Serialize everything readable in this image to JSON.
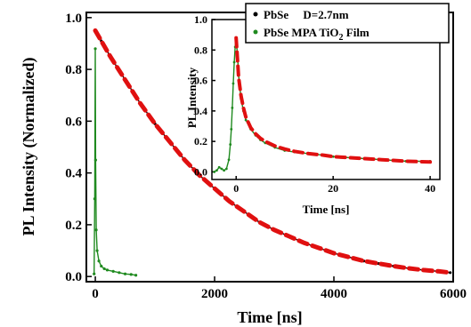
{
  "colors": {
    "black_series": "#000000",
    "green_series": "#1f8a1f",
    "fit": "#e01010"
  },
  "chart_data": [
    {
      "id": "main",
      "type": "scatter",
      "xlabel": "Time [ns]",
      "ylabel": "PL Intensity (Normalized)",
      "xlim": [
        -150,
        6000
      ],
      "ylim": [
        -0.02,
        1.02
      ],
      "xticks": [
        0,
        2000,
        4000,
        6000
      ],
      "xtick_labels": [
        "0",
        "2000",
        "4000",
        "6000"
      ],
      "yticks": [
        0.0,
        0.2,
        0.4,
        0.6,
        0.8,
        1.0
      ],
      "ytick_labels": [
        "0.0",
        "0.2",
        "0.4",
        "0.6",
        "0.8",
        "1.0"
      ],
      "series": [
        {
          "name": "PbSe     D=2.7nm",
          "color": "#000000",
          "x": [
            0,
            100,
            250,
            500,
            750,
            1000,
            1250,
            1500,
            1750,
            2000,
            2250,
            2500,
            2750,
            3000,
            3250,
            3500,
            3750,
            4000,
            4250,
            4500,
            4750,
            5000,
            5250,
            5500,
            5750,
            5950
          ],
          "y": [
            0.95,
            0.91,
            0.85,
            0.76,
            0.67,
            0.59,
            0.52,
            0.45,
            0.39,
            0.34,
            0.29,
            0.25,
            0.21,
            0.18,
            0.155,
            0.13,
            0.11,
            0.09,
            0.075,
            0.06,
            0.05,
            0.04,
            0.032,
            0.025,
            0.02,
            0.015
          ]
        },
        {
          "name": "PbSe MPA TiO2 Film",
          "color": "#1f8a1f",
          "x": [
            -20,
            -10,
            0,
            5,
            15,
            30,
            60,
            100,
            150,
            200,
            300,
            400,
            500,
            600,
            680
          ],
          "y": [
            0.01,
            0.3,
            0.88,
            0.45,
            0.18,
            0.1,
            0.06,
            0.04,
            0.03,
            0.025,
            0.02,
            0.015,
            0.01,
            0.008,
            0.005
          ]
        },
        {
          "name": "fit",
          "style": "dashed",
          "color": "#e01010",
          "x": [
            0,
            100,
            250,
            500,
            750,
            1000,
            1250,
            1500,
            1750,
            2000,
            2250,
            2500,
            2750,
            3000,
            3250,
            3500,
            3750,
            4000,
            4250,
            4500,
            4750,
            5000,
            5250,
            5500,
            5750,
            5950
          ],
          "y": [
            0.95,
            0.91,
            0.85,
            0.76,
            0.67,
            0.59,
            0.52,
            0.45,
            0.39,
            0.34,
            0.29,
            0.25,
            0.21,
            0.18,
            0.155,
            0.13,
            0.11,
            0.09,
            0.075,
            0.06,
            0.05,
            0.04,
            0.032,
            0.025,
            0.02,
            0.015
          ]
        }
      ]
    },
    {
      "id": "inset",
      "type": "scatter",
      "xlabel": "Time [ns]",
      "ylabel": "PL Intensity",
      "xlim": [
        -5,
        42
      ],
      "ylim": [
        -0.05,
        1.0
      ],
      "xticks": [
        0,
        20,
        40
      ],
      "xtick_labels": [
        "0",
        "20",
        "40"
      ],
      "yticks": [
        0.0,
        0.2,
        0.4,
        0.6,
        0.8,
        1.0
      ],
      "ytick_labels": [
        "0.0",
        "0.2",
        "0.4",
        "0.6",
        "0.8",
        "1.0"
      ],
      "legend": {
        "position": "top-right",
        "entries": [
          {
            "label": "PbSe     D=2.7nm",
            "color": "#000000"
          },
          {
            "label": "PbSe MPA TiO",
            "sub": "2",
            "suffix": " Film",
            "color": "#1f8a1f"
          }
        ]
      },
      "series": [
        {
          "name": "PbSe MPA TiO2 Film",
          "color": "#1f8a1f",
          "x": [
            -4.5,
            -4,
            -3.5,
            -3,
            -2.5,
            -2,
            -1.5,
            -1.2,
            -1,
            -0.8,
            -0.6,
            -0.4,
            -0.2,
            0,
            0.3,
            0.6,
            1,
            1.5,
            2,
            3,
            4,
            5,
            6,
            8,
            10,
            12,
            15,
            18,
            20,
            25,
            30,
            35,
            40
          ],
          "y": [
            0.0,
            0.01,
            0.03,
            0.02,
            0.01,
            0.02,
            0.08,
            0.18,
            0.28,
            0.42,
            0.58,
            0.72,
            0.82,
            0.88,
            0.75,
            0.6,
            0.48,
            0.4,
            0.34,
            0.28,
            0.24,
            0.21,
            0.19,
            0.16,
            0.14,
            0.13,
            0.12,
            0.11,
            0.1,
            0.09,
            0.08,
            0.07,
            0.07
          ]
        },
        {
          "name": "fit",
          "style": "dashed",
          "color": "#e01010",
          "x": [
            0,
            0.5,
            1,
            1.5,
            2,
            3,
            4,
            5,
            6,
            8,
            10,
            12,
            15,
            18,
            20,
            25,
            30,
            35,
            40
          ],
          "y": [
            0.88,
            0.62,
            0.5,
            0.42,
            0.36,
            0.29,
            0.25,
            0.22,
            0.2,
            0.17,
            0.15,
            0.135,
            0.12,
            0.11,
            0.1,
            0.09,
            0.08,
            0.07,
            0.065
          ]
        }
      ]
    }
  ]
}
